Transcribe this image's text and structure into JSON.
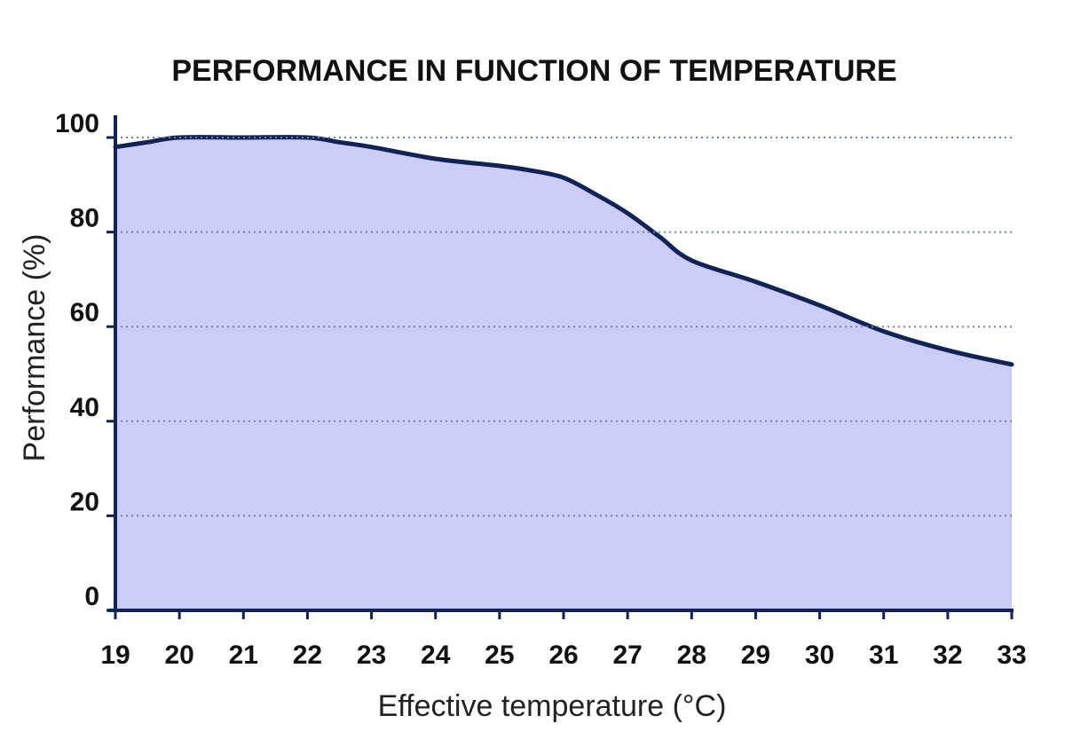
{
  "chart_data": {
    "type": "area",
    "title": "PERFORMANCE IN FUNCTION OF TEMPERATURE",
    "xlabel": "Effective temperature (°C)",
    "ylabel": "Performance (%)",
    "xlim": [
      19,
      33
    ],
    "ylim": [
      0,
      100
    ],
    "x_ticks": [
      "19",
      "20",
      "21",
      "22",
      "23",
      "24",
      "25",
      "26",
      "27",
      "28",
      "29",
      "30",
      "31",
      "32",
      "33"
    ],
    "y_ticks": [
      "0",
      "20",
      "40",
      "60",
      "80",
      "100"
    ],
    "grid": true,
    "series": [
      {
        "x": [
          19,
          19.5,
          20,
          21,
          22,
          22.5,
          23,
          24,
          25,
          25.5,
          26,
          26.5,
          27,
          27.5,
          28,
          29,
          30,
          31,
          32,
          33
        ],
        "values": [
          98,
          99,
          100,
          100,
          100,
          99,
          98,
          95.5,
          94,
          93,
          91.5,
          88,
          84,
          79,
          74,
          69.5,
          64.5,
          59,
          55,
          52
        ]
      }
    ],
    "colors": {
      "fill": "#ccccf8",
      "line": "#112255",
      "axis": "#112255",
      "grid": "#6f83a6"
    }
  }
}
